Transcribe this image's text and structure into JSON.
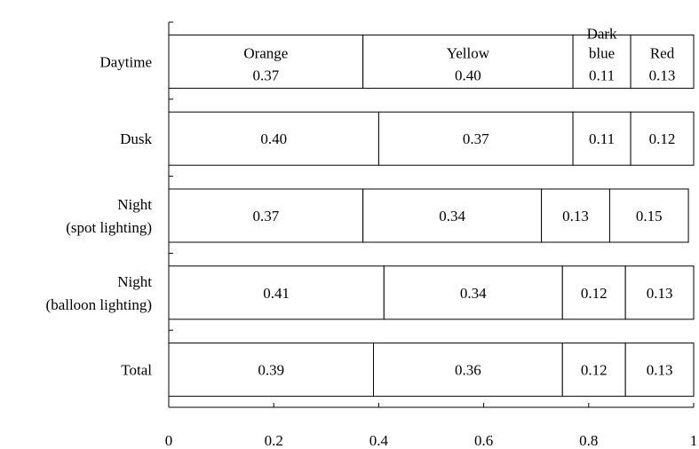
{
  "chart_data": {
    "type": "bar",
    "orientation": "horizontal",
    "stacked": true,
    "categories": [
      "Daytime",
      "Dusk",
      "Night\n(spot lighting)",
      "Night\n(balloon lighting)",
      "Total"
    ],
    "series": [
      {
        "name": "Orange",
        "values": [
          0.37,
          0.4,
          0.37,
          0.41,
          0.39
        ]
      },
      {
        "name": "Yellow",
        "values": [
          0.4,
          0.37,
          0.34,
          0.34,
          0.36
        ]
      },
      {
        "name": "Dark blue",
        "values": [
          0.11,
          0.11,
          0.13,
          0.12,
          0.12
        ]
      },
      {
        "name": "Red",
        "values": [
          0.13,
          0.12,
          0.15,
          0.13,
          0.13
        ]
      }
    ],
    "series_label_lines": [
      [
        "Orange"
      ],
      [
        "Yellow"
      ],
      [
        "Dark",
        "blue"
      ],
      [
        "Red"
      ]
    ],
    "xlim": [
      0,
      1
    ],
    "xticks": [
      "0",
      "0.2",
      "0.4",
      "0.6",
      "0.8",
      "1"
    ],
    "title": "",
    "xlabel": "",
    "ylabel": "",
    "legend": "labels inside first bar",
    "grid": false,
    "colors": {
      "bar_fill": "#ffffff",
      "stroke": "#000000"
    }
  }
}
